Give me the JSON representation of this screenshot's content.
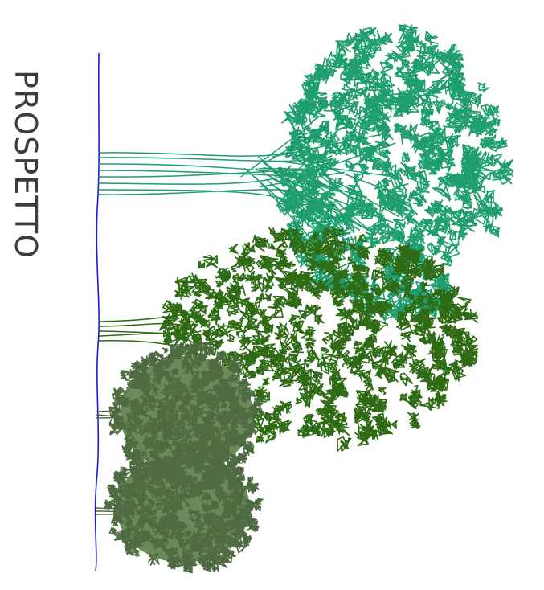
{
  "drawing": {
    "title": "PROSPETTO",
    "colors": {
      "ground_line": "#1a1ad8",
      "tree_large": "#1f9e6e",
      "tree_medium": "#2e6b14",
      "tree_small_fill": "#6a8a5a",
      "tree_small_stroke": "#4f6b42",
      "title": "#3c3c3c"
    }
  }
}
